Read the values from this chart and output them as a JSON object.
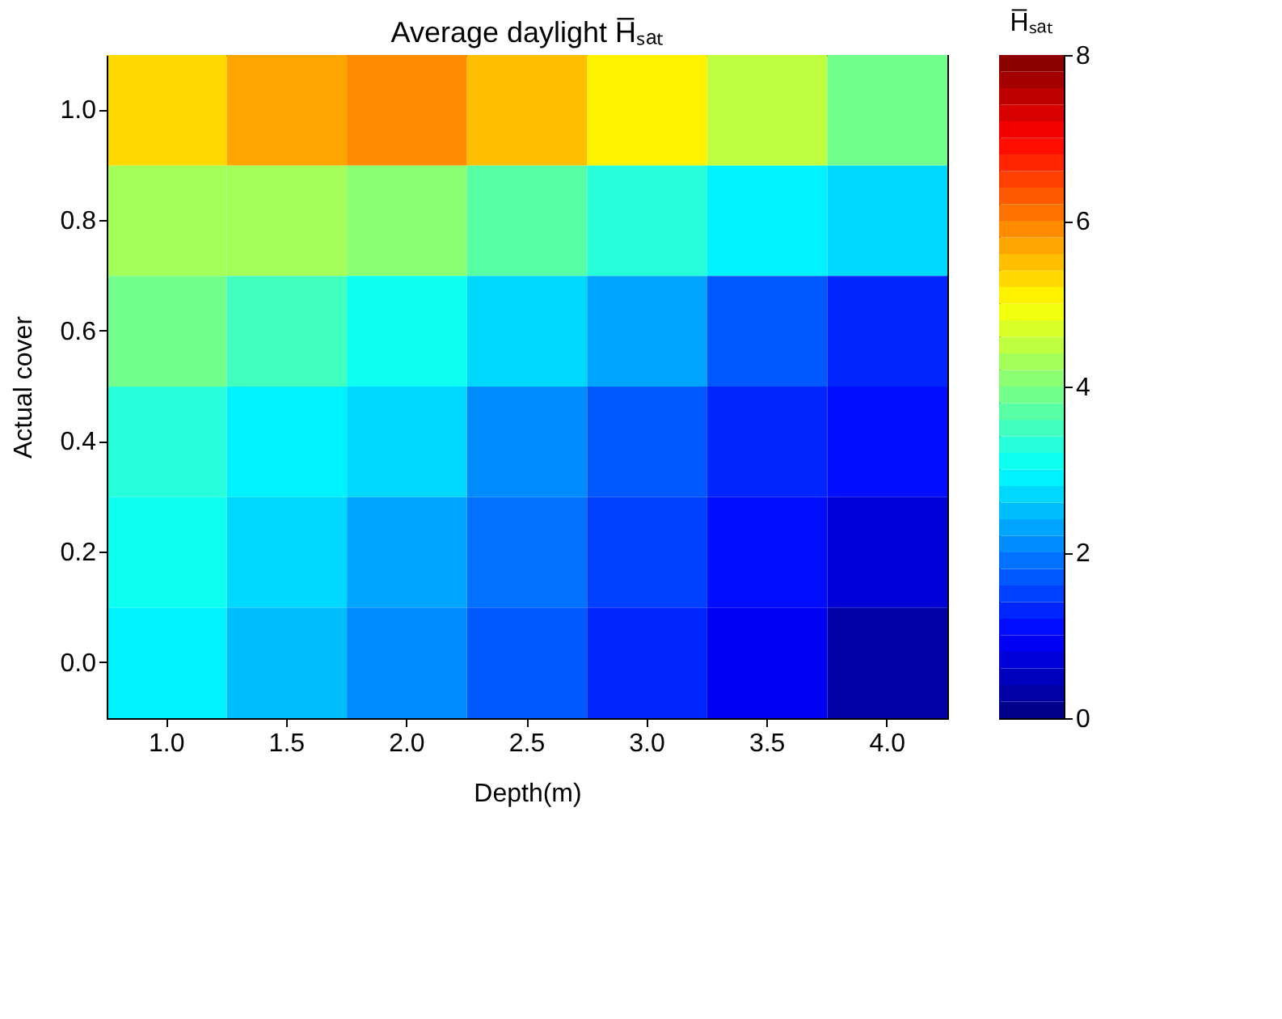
{
  "chart_data": {
    "type": "heatmap",
    "title": "Average daylight H̅ₛₐₜ",
    "xlabel": "Depth(m)",
    "ylabel": "Actual cover",
    "clabel": "H̅ₛₐₜ",
    "categories": [
      "1.0",
      "1.5",
      "2.0",
      "2.5",
      "3.0",
      "3.5",
      "4.0"
    ],
    "y_categories": [
      "1.0",
      "0.8",
      "0.6",
      "0.4",
      "0.2",
      "0.0"
    ],
    "cells": [
      [
        5.2,
        5.6,
        5.9,
        5.5,
        5.0,
        4.4,
        3.8
      ],
      [
        4.3,
        4.2,
        4.0,
        3.6,
        3.2,
        2.9,
        2.6
      ],
      [
        3.8,
        3.4,
        3.0,
        2.6,
        2.2,
        1.7,
        1.3
      ],
      [
        3.3,
        2.9,
        2.6,
        2.1,
        1.7,
        1.3,
        1.0
      ],
      [
        3.0,
        2.6,
        2.2,
        1.8,
        1.5,
        1.1,
        0.6
      ],
      [
        2.9,
        2.4,
        2.0,
        1.6,
        1.3,
        0.9,
        0.3
      ]
    ],
    "clim": [
      0,
      8
    ],
    "cticks": [
      0,
      2,
      4,
      6,
      8
    ],
    "grid": false
  }
}
